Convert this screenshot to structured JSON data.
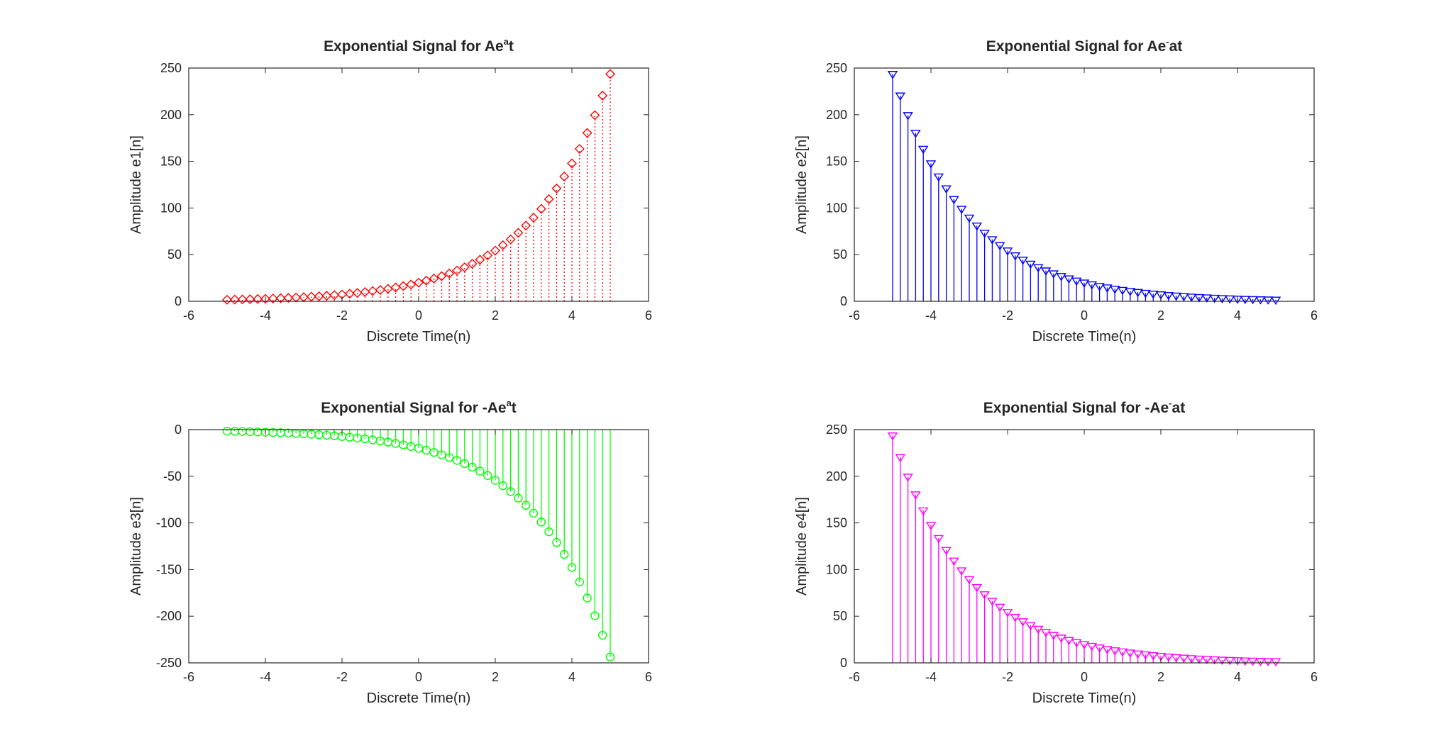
{
  "chart_data": [
    {
      "type": "stem",
      "title": "Exponential Signal for Ae^at",
      "title_parts": {
        "base": "Exponential Signal for Ae",
        "superscript": "a",
        "suffix": "t"
      },
      "xlabel": "Discrete Time(n)",
      "ylabel": "Amplitude e1[n]",
      "xlim": [
        -6,
        6
      ],
      "ylim": [
        0,
        250
      ],
      "xticks": [
        "-6",
        "-4",
        "-2",
        "0",
        "2",
        "4",
        "6"
      ],
      "yticks": [
        "0",
        "50",
        "100",
        "150",
        "200",
        "250"
      ],
      "line_style": "dotted",
      "marker": "diamond",
      "color": "#ff0000",
      "series": [
        {
          "x": [
            -5.0,
            -4.8,
            -4.6,
            -4.4,
            -4.2,
            -4.0,
            -3.8,
            -3.6,
            -3.4,
            -3.2,
            -3.0,
            -2.8,
            -2.6,
            -2.4,
            -2.2,
            -2.0,
            -1.8,
            -1.6,
            -1.4,
            -1.2,
            -1.0,
            -0.8,
            -0.6,
            -0.4,
            -0.2,
            0.0,
            0.2,
            0.4,
            0.6,
            0.8,
            1.0,
            1.2,
            1.4,
            1.6,
            1.8,
            2.0,
            2.2,
            2.4,
            2.6,
            2.8,
            3.0,
            3.2,
            3.4,
            3.6,
            3.8,
            4.0,
            4.2,
            4.4,
            4.6,
            4.8,
            5.0
          ],
          "y": [
            1.65,
            1.82,
            2.01,
            2.22,
            2.45,
            2.71,
            2.99,
            3.31,
            3.65,
            4.04,
            4.46,
            4.93,
            5.45,
            6.02,
            6.65,
            7.36,
            8.13,
            8.98,
            9.93,
            10.97,
            12.13,
            13.4,
            14.81,
            16.37,
            18.09,
            20.0,
            22.1,
            24.43,
            27.0,
            29.84,
            32.97,
            36.44,
            40.27,
            44.51,
            49.19,
            54.37,
            60.09,
            66.4,
            73.39,
            81.11,
            89.64,
            99.07,
            109.49,
            121.0,
            133.73,
            147.78,
            163.33,
            180.51,
            199.49,
            220.47,
            243.65
          ]
        }
      ]
    },
    {
      "type": "stem",
      "title": "Exponential Signal for Ae^-at",
      "title_parts": {
        "base": "Exponential Signal for Ae",
        "superscript": "-",
        "suffix": "at"
      },
      "xlabel": "Discrete Time(n)",
      "ylabel": "Amplitude e2[n]",
      "xlim": [
        -6,
        6
      ],
      "ylim": [
        0,
        250
      ],
      "xticks": [
        "-6",
        "-4",
        "-2",
        "0",
        "2",
        "4",
        "6"
      ],
      "yticks": [
        "0",
        "50",
        "100",
        "150",
        "200",
        "250"
      ],
      "line_style": "solid",
      "marker": "triangle-down",
      "color": "#0000ff",
      "series": [
        {
          "x": [
            -5.0,
            -4.8,
            -4.6,
            -4.4,
            -4.2,
            -4.0,
            -3.8,
            -3.6,
            -3.4,
            -3.2,
            -3.0,
            -2.8,
            -2.6,
            -2.4,
            -2.2,
            -2.0,
            -1.8,
            -1.6,
            -1.4,
            -1.2,
            -1.0,
            -0.8,
            -0.6,
            -0.4,
            -0.2,
            0.0,
            0.2,
            0.4,
            0.6,
            0.8,
            1.0,
            1.2,
            1.4,
            1.6,
            1.8,
            2.0,
            2.2,
            2.4,
            2.6,
            2.8,
            3.0,
            3.2,
            3.4,
            3.6,
            3.8,
            4.0,
            4.2,
            4.4,
            4.6,
            4.8,
            5.0
          ],
          "y": [
            243.65,
            220.47,
            199.49,
            180.51,
            163.33,
            147.78,
            133.73,
            121.0,
            109.49,
            99.07,
            89.64,
            81.11,
            73.39,
            66.4,
            60.09,
            54.37,
            49.19,
            44.51,
            40.27,
            36.44,
            32.97,
            29.84,
            27.0,
            24.43,
            22.1,
            20.0,
            18.09,
            16.37,
            14.81,
            13.4,
            12.13,
            10.97,
            9.93,
            8.98,
            8.13,
            7.36,
            6.65,
            6.02,
            5.45,
            4.93,
            4.46,
            4.04,
            3.65,
            3.31,
            2.99,
            2.71,
            2.45,
            2.22,
            2.01,
            1.82,
            1.65
          ]
        }
      ]
    },
    {
      "type": "stem",
      "title": "Exponential Signal for -Ae^at",
      "title_parts": {
        "base": "Exponential Signal for -Ae",
        "superscript": "a",
        "suffix": "t"
      },
      "xlabel": "Discrete Time(n)",
      "ylabel": "Amplitude e3[n]",
      "xlim": [
        -6,
        6
      ],
      "ylim": [
        -250,
        0
      ],
      "xticks": [
        "-6",
        "-4",
        "-2",
        "0",
        "2",
        "4",
        "6"
      ],
      "yticks": [
        "-250",
        "-200",
        "-150",
        "-100",
        "-50",
        "0"
      ],
      "line_style": "solid",
      "marker": "circle",
      "color": "#00ff00",
      "series": [
        {
          "x": [
            -5.0,
            -4.8,
            -4.6,
            -4.4,
            -4.2,
            -4.0,
            -3.8,
            -3.6,
            -3.4,
            -3.2,
            -3.0,
            -2.8,
            -2.6,
            -2.4,
            -2.2,
            -2.0,
            -1.8,
            -1.6,
            -1.4,
            -1.2,
            -1.0,
            -0.8,
            -0.6,
            -0.4,
            -0.2,
            0.0,
            0.2,
            0.4,
            0.6,
            0.8,
            1.0,
            1.2,
            1.4,
            1.6,
            1.8,
            2.0,
            2.2,
            2.4,
            2.6,
            2.8,
            3.0,
            3.2,
            3.4,
            3.6,
            3.8,
            4.0,
            4.2,
            4.4,
            4.6,
            4.8,
            5.0
          ],
          "y": [
            -1.65,
            -1.82,
            -2.01,
            -2.22,
            -2.45,
            -2.71,
            -2.99,
            -3.31,
            -3.65,
            -4.04,
            -4.46,
            -4.93,
            -5.45,
            -6.02,
            -6.65,
            -7.36,
            -8.13,
            -8.98,
            -9.93,
            -10.97,
            -12.13,
            -13.4,
            -14.81,
            -16.37,
            -18.09,
            -20.0,
            -22.1,
            -24.43,
            -27.0,
            -29.84,
            -32.97,
            -36.44,
            -40.27,
            -44.51,
            -49.19,
            -54.37,
            -60.09,
            -66.4,
            -73.39,
            -81.11,
            -89.64,
            -99.07,
            -109.49,
            -121.0,
            -133.73,
            -147.78,
            -163.33,
            -180.51,
            -199.49,
            -220.47,
            -243.65
          ]
        }
      ]
    },
    {
      "type": "stem",
      "title": "Exponential Signal for -Ae^-at",
      "title_parts": {
        "base": "Exponential Signal for -Ae",
        "superscript": "-",
        "suffix": "at"
      },
      "xlabel": "Discrete Time(n)",
      "ylabel": "Amplitude e4[n]",
      "xlim": [
        -6,
        6
      ],
      "ylim": [
        0,
        250
      ],
      "xticks": [
        "-6",
        "-4",
        "-2",
        "0",
        "2",
        "4",
        "6"
      ],
      "yticks": [
        "0",
        "50",
        "100",
        "150",
        "200",
        "250"
      ],
      "line_style": "solid",
      "marker": "triangle-down",
      "color": "#ff00ff",
      "series": [
        {
          "x": [
            -5.0,
            -4.8,
            -4.6,
            -4.4,
            -4.2,
            -4.0,
            -3.8,
            -3.6,
            -3.4,
            -3.2,
            -3.0,
            -2.8,
            -2.6,
            -2.4,
            -2.2,
            -2.0,
            -1.8,
            -1.6,
            -1.4,
            -1.2,
            -1.0,
            -0.8,
            -0.6,
            -0.4,
            -0.2,
            0.0,
            0.2,
            0.4,
            0.6,
            0.8,
            1.0,
            1.2,
            1.4,
            1.6,
            1.8,
            2.0,
            2.2,
            2.4,
            2.6,
            2.8,
            3.0,
            3.2,
            3.4,
            3.6,
            3.8,
            4.0,
            4.2,
            4.4,
            4.6,
            4.8,
            5.0
          ],
          "y": [
            243.65,
            220.47,
            199.49,
            180.51,
            163.33,
            147.78,
            133.73,
            121.0,
            109.49,
            99.07,
            89.64,
            81.11,
            73.39,
            66.4,
            60.09,
            54.37,
            49.19,
            44.51,
            40.27,
            36.44,
            32.97,
            29.84,
            27.0,
            24.43,
            22.1,
            20.0,
            18.09,
            16.37,
            14.81,
            13.4,
            12.13,
            10.97,
            9.93,
            8.98,
            8.13,
            7.36,
            6.65,
            6.02,
            5.45,
            4.93,
            4.46,
            4.04,
            3.65,
            3.31,
            2.99,
            2.71,
            2.45,
            2.22,
            2.01,
            1.82,
            1.65
          ]
        }
      ]
    }
  ]
}
